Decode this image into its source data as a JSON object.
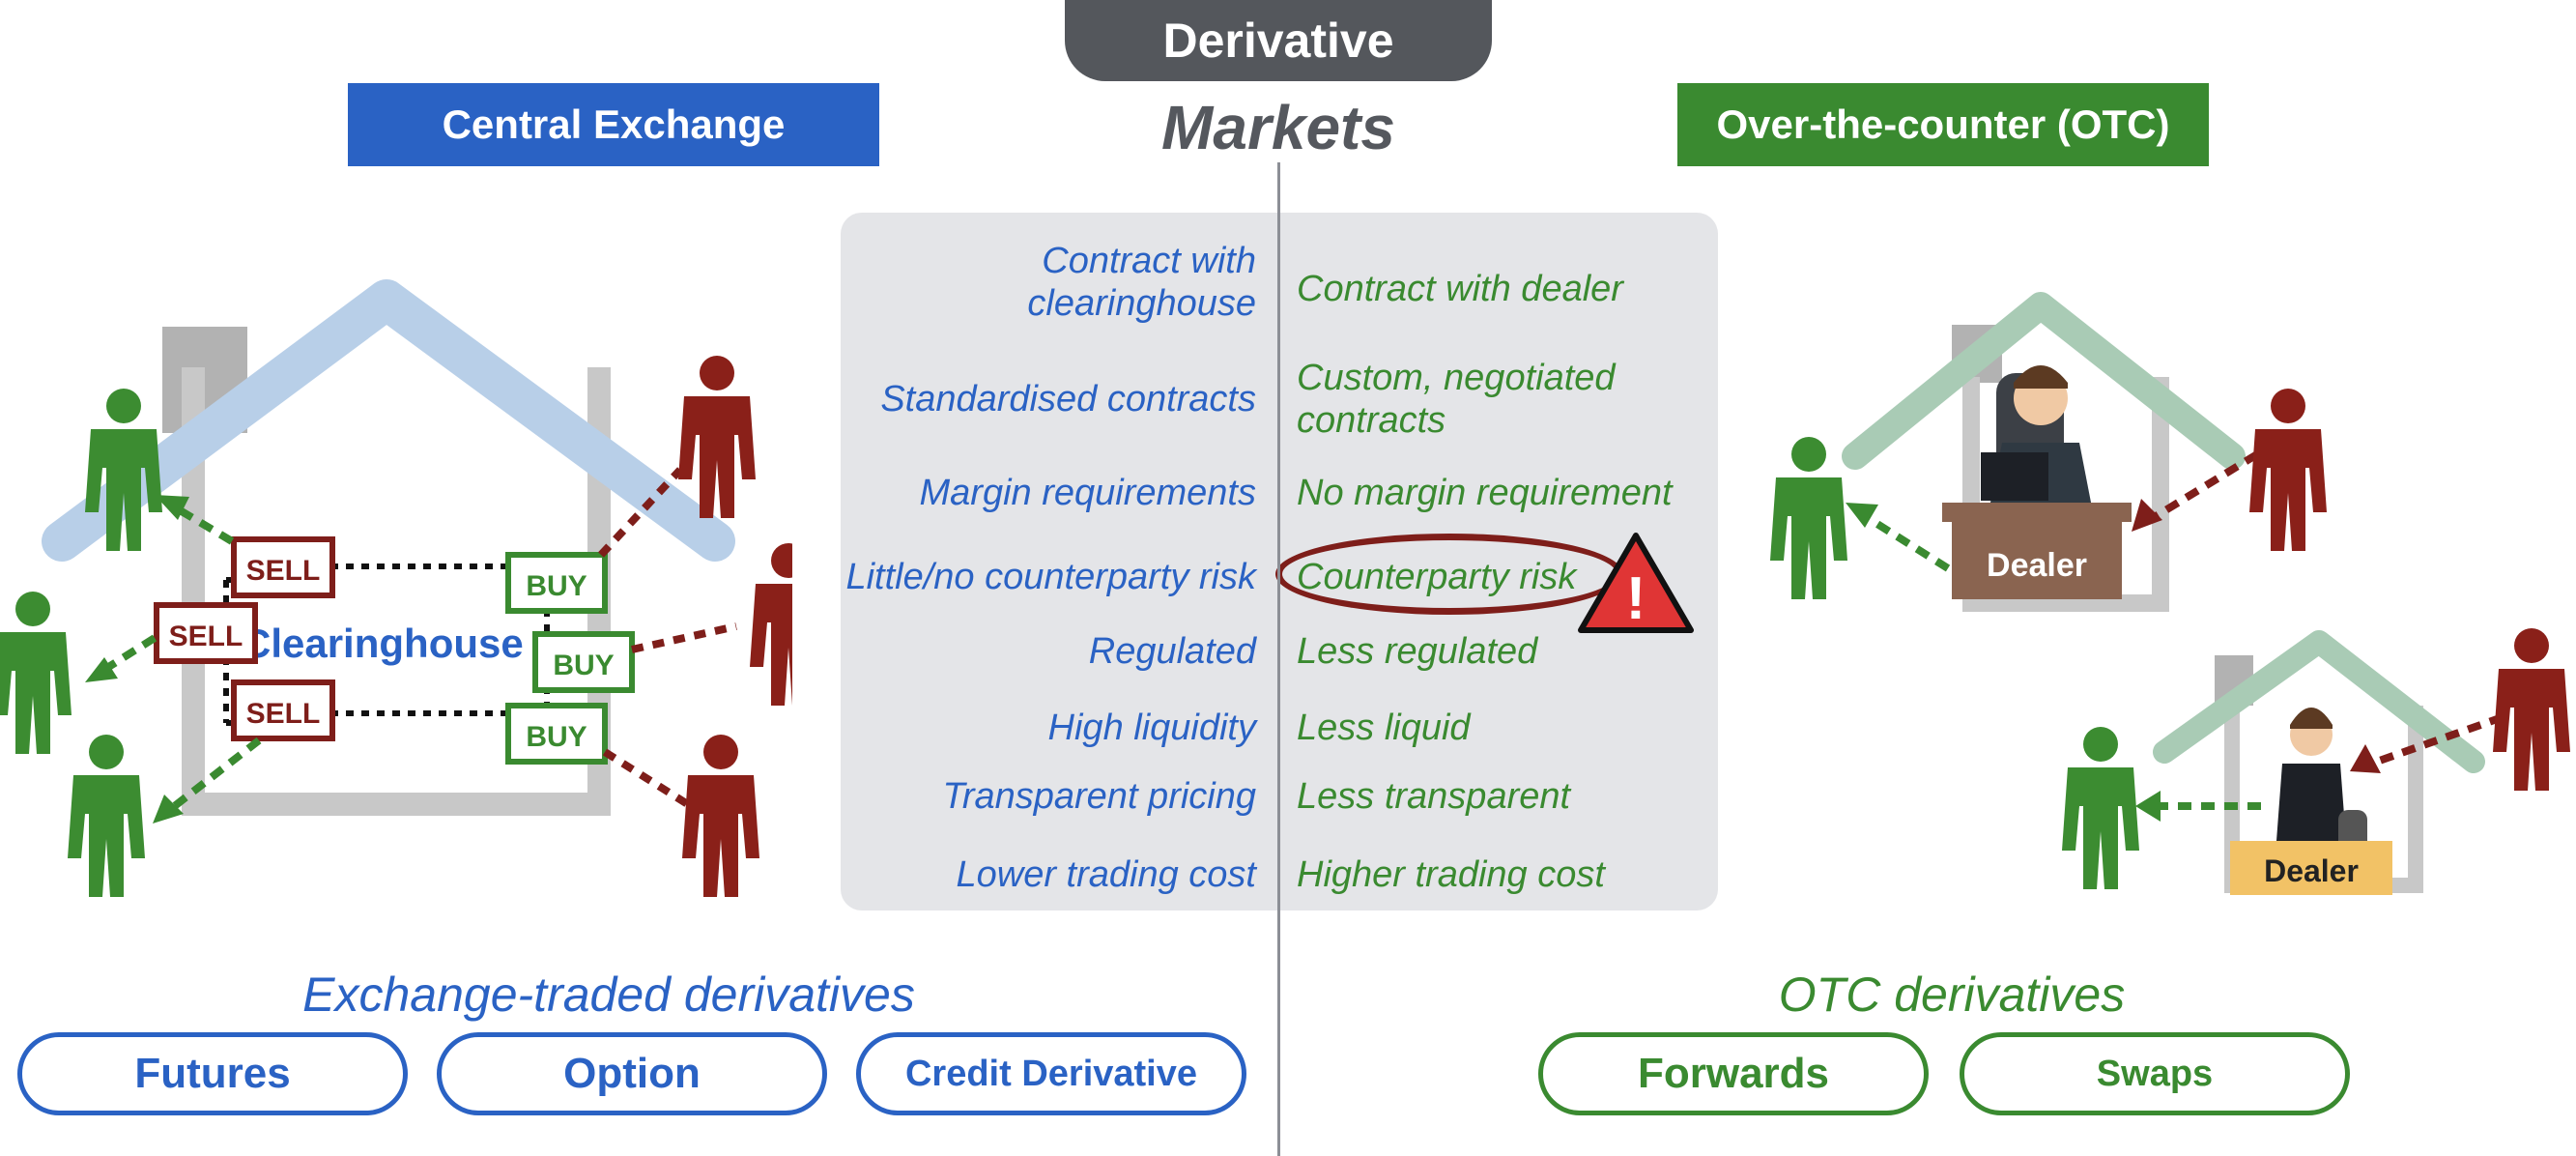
{
  "header": {
    "pill": "Derivative",
    "subtitle": "Markets"
  },
  "left": {
    "banner": "Central Exchange",
    "clearinghouse": "Clearinghouse",
    "sell_label": "SELL",
    "buy_label": "BUY"
  },
  "right": {
    "banner": "Over-the-counter (OTC)",
    "dealer_label": "Dealer"
  },
  "comparison": [
    {
      "exchange": "Contract with\nclearinghouse",
      "otc": "Contract with dealer"
    },
    {
      "exchange": "Standardised contracts",
      "otc": "Custom, negotiated\ncontracts"
    },
    {
      "exchange": "Margin requirements",
      "otc": "No margin requirement"
    },
    {
      "exchange": "Little/no counterparty risk",
      "otc": "Counterparty risk"
    },
    {
      "exchange": "Regulated",
      "otc": "Less regulated"
    },
    {
      "exchange": "High liquidity",
      "otc": "Less liquid"
    },
    {
      "exchange": "Transparent pricing",
      "otc": "Less transparent"
    },
    {
      "exchange": "Lower trading cost",
      "otc": "Higher trading cost"
    }
  ],
  "warning_symbol": "!",
  "exchange_traded": {
    "title": "Exchange-traded derivatives",
    "items": [
      "Futures",
      "Option",
      "Credit Derivative"
    ]
  },
  "otc_traded": {
    "title": "OTC derivatives",
    "items": [
      "Forwards",
      "Swaps"
    ]
  },
  "colors": {
    "blue": "#2a62c4",
    "green": "#3a8a30",
    "red": "#7e1e1a",
    "gray": "#54575c"
  }
}
